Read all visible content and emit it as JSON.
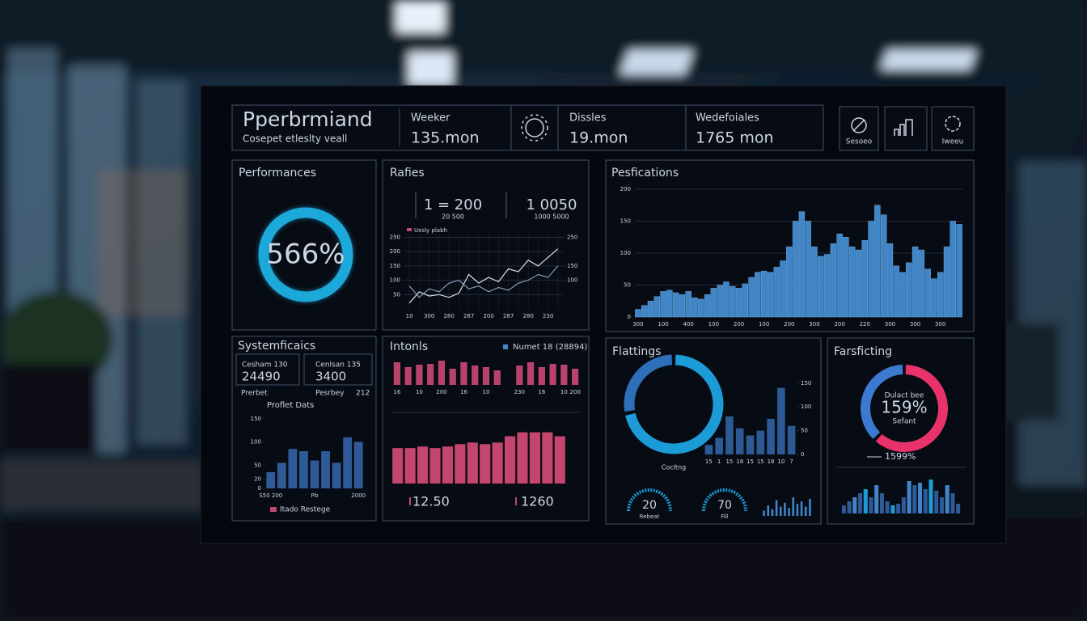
{
  "header": {
    "title": "Pperbrmiand",
    "subtitle": "Cosepet etleslty veall",
    "stats": [
      {
        "label": "Weeker",
        "value": "135.mon"
      },
      {
        "label": "Dissles",
        "value": "19.mon"
      },
      {
        "label": "Wedefoiales",
        "value": "1765 mon"
      }
    ],
    "icon_labels": [
      "Sesoeo",
      "Iweeu"
    ]
  },
  "performances": {
    "title": "Performances",
    "value": "566%"
  },
  "rafies": {
    "title": "Rafies",
    "stats": [
      {
        "value": "1 = 200",
        "sub": "20 500"
      },
      {
        "value": "1 0050",
        "sub": "1000 5000"
      }
    ],
    "chart": {
      "type": "line",
      "legend": "Uesly plabh",
      "categories": [
        "10",
        null,
        "300",
        null,
        "280",
        null,
        "287",
        null,
        "200",
        null,
        "287",
        null,
        "280",
        null,
        "230",
        null
      ],
      "series": [
        {
          "color": "#d9dee8",
          "values": [
            20,
            60,
            45,
            50,
            40,
            55,
            120,
            90,
            110,
            95,
            140,
            130,
            170,
            150,
            180,
            210
          ]
        },
        {
          "color": "#8f9bb3",
          "values": [
            80,
            40,
            70,
            60,
            90,
            100,
            70,
            80,
            60,
            75,
            65,
            90,
            100,
            120,
            110,
            150
          ]
        }
      ],
      "ylim": [
        0,
        260
      ],
      "yticks": [
        50,
        100,
        150,
        200,
        250
      ],
      "y2lim": [
        0,
        260
      ],
      "y2ticks": [
        100,
        150,
        250
      ]
    }
  },
  "specifications": {
    "title": "Pesfications",
    "chart": {
      "type": "bar",
      "color": "#3f86c9",
      "categories": [
        "300",
        null,
        null,
        null,
        "100",
        null,
        null,
        null,
        "400",
        null,
        null,
        null,
        "100",
        null,
        null,
        null,
        "200",
        null,
        null,
        null,
        "100",
        null,
        null,
        null,
        "200",
        null,
        null,
        null,
        "300",
        null,
        null,
        null,
        "200",
        null,
        null,
        null,
        "220",
        null,
        null,
        null,
        "300",
        null,
        null,
        null,
        "300",
        null,
        null,
        null,
        "300",
        null,
        null,
        null
      ],
      "values": [
        12,
        18,
        25,
        32,
        40,
        42,
        38,
        35,
        40,
        30,
        28,
        35,
        45,
        50,
        55,
        48,
        45,
        52,
        62,
        70,
        72,
        70,
        78,
        88,
        110,
        150,
        165,
        150,
        110,
        95,
        98,
        115,
        130,
        125,
        110,
        105,
        120,
        150,
        175,
        160,
        115,
        80,
        70,
        85,
        110,
        105,
        75,
        60,
        70,
        110,
        150,
        145
      ],
      "ylim": [
        0,
        200
      ],
      "yticks": [
        0,
        50,
        100,
        150,
        200
      ],
      "grid": true
    }
  },
  "systemficaics": {
    "title": "Systemficaics",
    "boxes": [
      {
        "label": "Cesham 130",
        "value": "24490"
      },
      {
        "label": "Cenlsan 135",
        "value": "3400"
      }
    ],
    "row": [
      "Prerbet",
      "Pesrbey",
      "212"
    ],
    "chart": {
      "type": "bar",
      "title": "Proflet Dats",
      "legend": "Itado Restege",
      "color": "#2f5a97",
      "categories": [
        "S50 200",
        null,
        null,
        null,
        "Pb",
        null,
        null,
        null,
        "2000"
      ],
      "values": [
        35,
        55,
        85,
        80,
        60,
        80,
        55,
        110,
        100
      ],
      "ylim": [
        0,
        160
      ],
      "yticks": [
        0,
        20,
        50,
        100,
        150
      ]
    }
  },
  "intonls": {
    "title": "Intonls",
    "legend": "Numet 18 (28894)",
    "top_chart": {
      "type": "bar",
      "color": "#b8426b",
      "categories": [
        "16",
        null,
        "10",
        null,
        "200",
        null,
        "16",
        null,
        "10",
        null,
        null,
        "230",
        null,
        "16",
        null,
        "10",
        "200"
      ],
      "values": [
        28,
        22,
        25,
        26,
        30,
        20,
        28,
        24,
        22,
        18,
        null,
        24,
        28,
        22,
        26,
        25,
        20
      ],
      "ylim": [
        0,
        32
      ]
    },
    "main_chart": {
      "type": "bar",
      "color": "#c4466f",
      "categories": [
        null,
        null,
        null,
        null,
        null,
        null,
        null,
        null,
        null,
        null,
        null,
        null,
        null,
        null
      ],
      "values": [
        45,
        45,
        47,
        45,
        47,
        50,
        52,
        50,
        52,
        60,
        65,
        65,
        65,
        60
      ],
      "ylim": [
        0,
        80
      ]
    },
    "stats": [
      "12.50",
      "1260"
    ]
  },
  "flattings": {
    "title": "Flattings",
    "donut": {
      "type": "pie",
      "values": [
        72,
        28
      ],
      "colors": [
        "#1d9bd6",
        "#2d6fb8"
      ]
    },
    "chart": {
      "type": "bar",
      "caption": "Cocltng",
      "color": "#2d5a94",
      "categories": [
        "15",
        "1",
        "15",
        "18",
        "15",
        "15",
        "18",
        "10",
        "7"
      ],
      "values": [
        20,
        35,
        80,
        55,
        40,
        50,
        75,
        140,
        60
      ],
      "ylim": [
        0,
        170
      ],
      "yticks": [
        0,
        50,
        100,
        150
      ]
    },
    "gauges": [
      {
        "value": "20",
        "label": "Rebeat"
      },
      {
        "value": "70",
        "label": "Fill"
      }
    ],
    "sparkline": {
      "type": "bar",
      "color": "#3f86c9",
      "values": [
        4,
        8,
        5,
        12,
        7,
        10,
        6,
        14,
        9,
        11,
        7,
        13
      ],
      "ylim": [
        0,
        16
      ]
    }
  },
  "farsficting": {
    "title": "Farsficting",
    "donut": {
      "type": "pie",
      "values": [
        62,
        38
      ],
      "colors": [
        "#e8336a",
        "#3b7ad0"
      ]
    },
    "donut_texts": [
      "Dulact bee",
      "159%",
      "Sefant"
    ],
    "caption": "1599%",
    "chart": {
      "type": "bar",
      "values": [
        10,
        15,
        20,
        25,
        30,
        20,
        35,
        25,
        15,
        10,
        12,
        20,
        40,
        35,
        38,
        30,
        42,
        28,
        20,
        35,
        25,
        12
      ],
      "colors": [
        "#2f5a97",
        "#2f5a97",
        "#3f86c9",
        "#2f5a97",
        "#1d9bd6",
        "#2f5a97",
        "#3f86c9",
        "#2f5a97",
        "#2f5a97",
        "#1d9bd6",
        "#2f5a97",
        "#2f5a97",
        "#3f86c9",
        "#2f5a97",
        "#3f86c9",
        "#2f5a97",
        "#1d9bd6",
        "#2f5a97",
        "#2f5a97",
        "#3f86c9",
        "#2f5a97",
        "#2f5a97"
      ],
      "ylim": [
        0,
        50
      ]
    }
  }
}
